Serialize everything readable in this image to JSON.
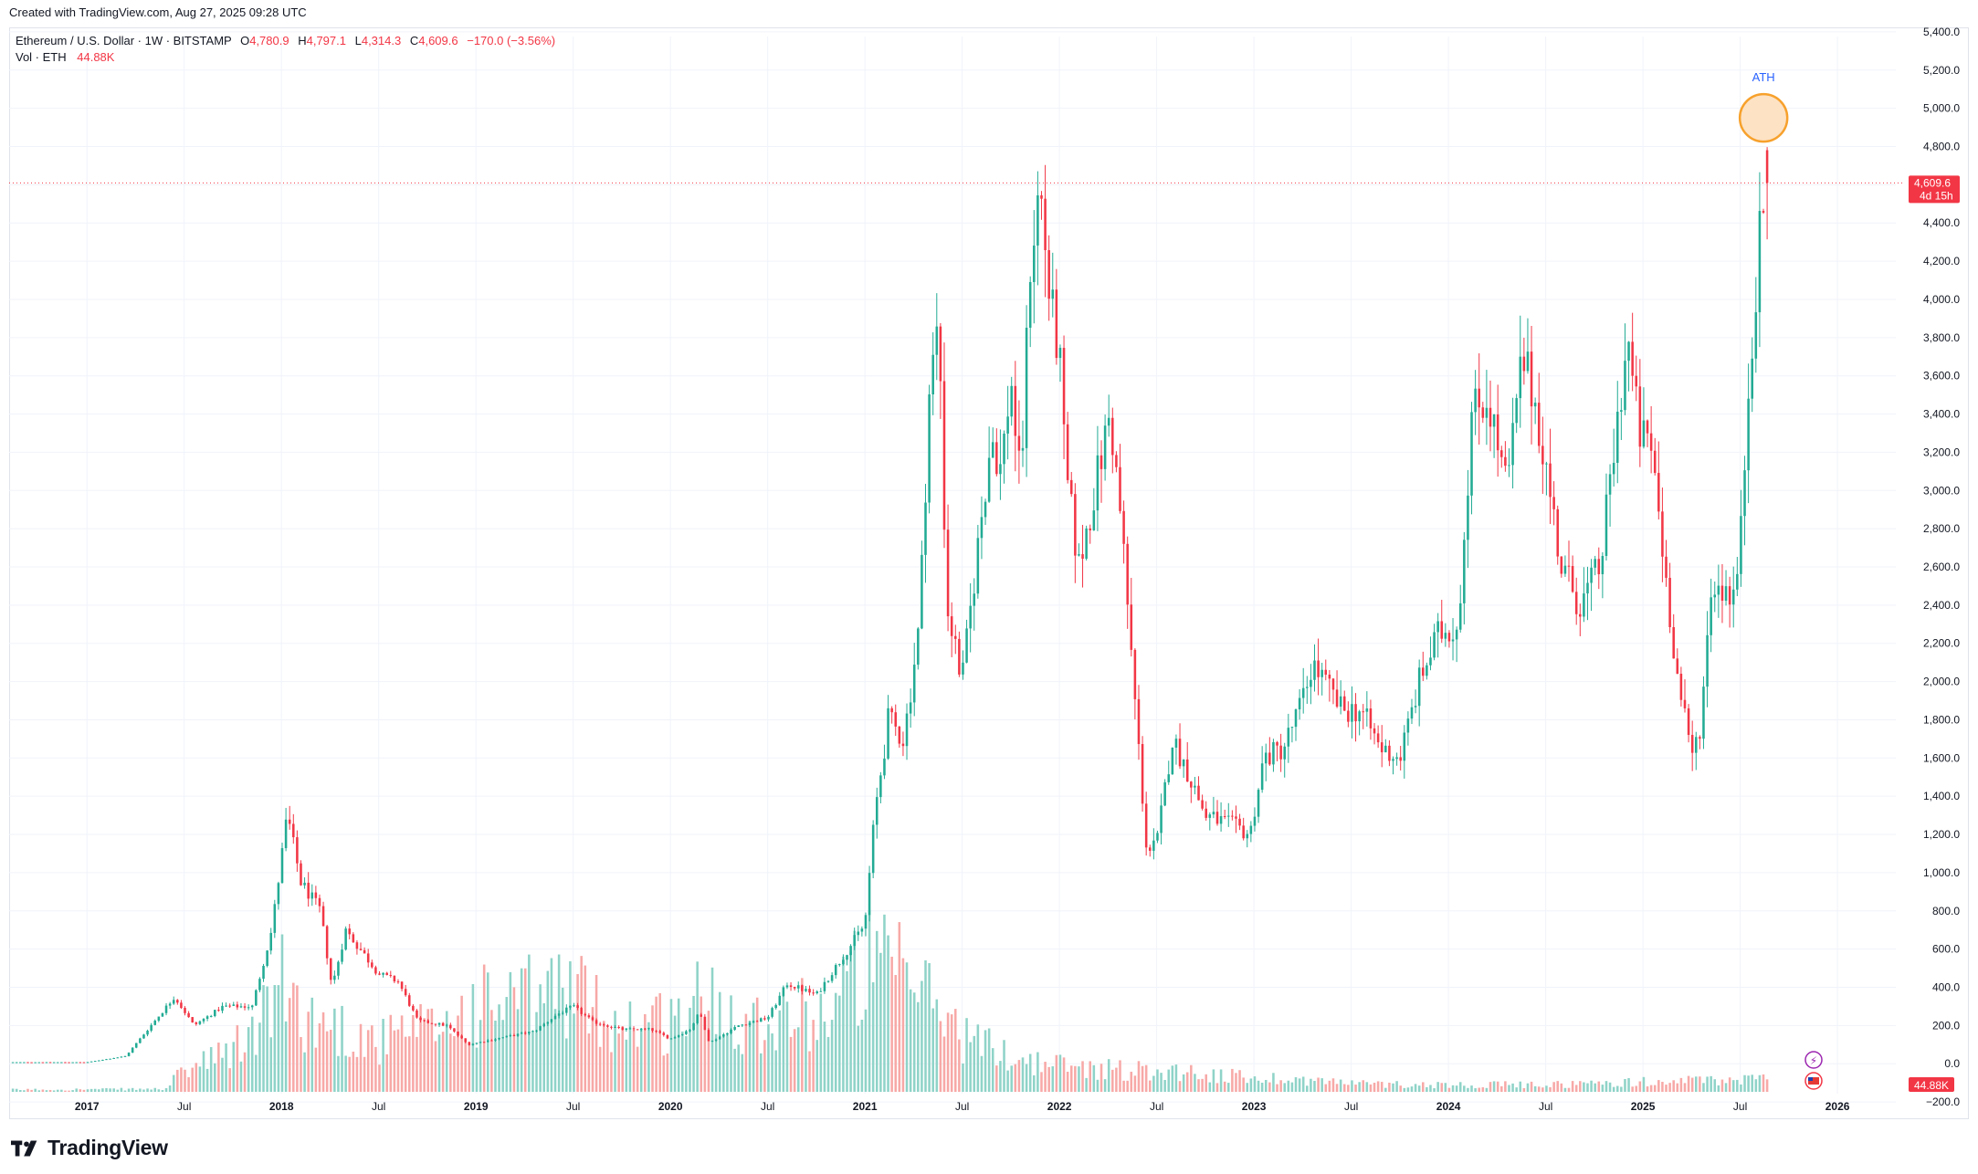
{
  "header": {
    "created_with": "Created with TradingView.com, Aug 27, 2025 09:28 UTC"
  },
  "legend": {
    "symbol": "Ethereum / U.S. Dollar · 1W · BITSTAMP",
    "open_key": "O",
    "open": "4,780.9",
    "high_key": "H",
    "high": "4,797.1",
    "low_key": "L",
    "low": "4,314.3",
    "close_key": "C",
    "close": "4,609.6",
    "change": "−170.0 (−3.56%)",
    "vol_label": "Vol · ETH",
    "vol_value": "44.88K"
  },
  "price_tag": {
    "price": "4,609.6",
    "countdown": "4d 15h"
  },
  "volume_tag": "44.88K",
  "annotation": {
    "text": "ATH",
    "price": 4950
  },
  "brand": {
    "name": "TradingView"
  },
  "colors": {
    "up": "#22ab94",
    "down": "#f23645",
    "up_vol": "#8fd3c8",
    "down_vol": "#f7a9a7",
    "ath_fill": "#fde2c4",
    "ath_stroke": "#f7a12c",
    "ath_text": "#2962ff"
  },
  "chart_data": {
    "type": "candlestick",
    "timeframe": "1W",
    "x_ticks": [
      {
        "label": "2017",
        "t": 2017.0,
        "bold": true
      },
      {
        "label": "Jul",
        "t": 2017.5,
        "bold": false
      },
      {
        "label": "2018",
        "t": 2018.0,
        "bold": true
      },
      {
        "label": "Jul",
        "t": 2018.5,
        "bold": false
      },
      {
        "label": "2019",
        "t": 2019.0,
        "bold": true
      },
      {
        "label": "Jul",
        "t": 2019.5,
        "bold": false
      },
      {
        "label": "2020",
        "t": 2020.0,
        "bold": true
      },
      {
        "label": "Jul",
        "t": 2020.5,
        "bold": false
      },
      {
        "label": "2021",
        "t": 2021.0,
        "bold": true
      },
      {
        "label": "Jul",
        "t": 2021.5,
        "bold": false
      },
      {
        "label": "2022",
        "t": 2022.0,
        "bold": true
      },
      {
        "label": "Jul",
        "t": 2022.5,
        "bold": false
      },
      {
        "label": "2023",
        "t": 2023.0,
        "bold": true
      },
      {
        "label": "Jul",
        "t": 2023.5,
        "bold": false
      },
      {
        "label": "2024",
        "t": 2024.0,
        "bold": true
      },
      {
        "label": "Jul",
        "t": 2024.5,
        "bold": false
      },
      {
        "label": "2025",
        "t": 2025.0,
        "bold": true
      },
      {
        "label": "Jul",
        "t": 2025.5,
        "bold": false
      },
      {
        "label": "2026",
        "t": 2026.0,
        "bold": true
      }
    ],
    "y_ticks": [
      "5,400.0",
      "5,200.0",
      "5,000.0",
      "4,800.0",
      "4,600.0",
      "4,400.0",
      "4,200.0",
      "4,000.0",
      "3,800.0",
      "3,600.0",
      "3,400.0",
      "3,200.0",
      "3,000.0",
      "2,800.0",
      "2,600.0",
      "2,400.0",
      "2,200.0",
      "2,000.0",
      "1,800.0",
      "1,600.0",
      "1,400.0",
      "1,200.0",
      "1,000.0",
      "800.0",
      "600.0",
      "400.0",
      "200.0",
      "0.0",
      "−200.0"
    ],
    "y_tick_values": [
      5400,
      5200,
      5000,
      4800,
      4600,
      4400,
      4200,
      4000,
      3800,
      3600,
      3400,
      3200,
      3000,
      2800,
      2600,
      2400,
      2200,
      2000,
      1800,
      1600,
      1400,
      1200,
      1000,
      800,
      600,
      400,
      200,
      0,
      -200
    ],
    "ylim": [
      -300,
      5500
    ],
    "xlim": [
      2016.6,
      2026.3
    ],
    "last_price": 4609.6,
    "close_anchors": [
      [
        2016.6,
        8
      ],
      [
        2017.0,
        8
      ],
      [
        2017.2,
        40
      ],
      [
        2017.45,
        350
      ],
      [
        2017.55,
        200
      ],
      [
        2017.7,
        300
      ],
      [
        2017.85,
        300
      ],
      [
        2017.95,
        700
      ],
      [
        2018.03,
        1300
      ],
      [
        2018.1,
        950
      ],
      [
        2018.2,
        800
      ],
      [
        2018.26,
        400
      ],
      [
        2018.33,
        700
      ],
      [
        2018.5,
        470
      ],
      [
        2018.6,
        430
      ],
      [
        2018.7,
        225
      ],
      [
        2018.85,
        200
      ],
      [
        2018.96,
        100
      ],
      [
        2019.1,
        130
      ],
      [
        2019.3,
        170
      ],
      [
        2019.42,
        260
      ],
      [
        2019.5,
        300
      ],
      [
        2019.6,
        220
      ],
      [
        2019.75,
        180
      ],
      [
        2019.9,
        180
      ],
      [
        2020.0,
        130
      ],
      [
        2020.1,
        180
      ],
      [
        2020.15,
        270
      ],
      [
        2020.2,
        110
      ],
      [
        2020.35,
        200
      ],
      [
        2020.5,
        240
      ],
      [
        2020.6,
        420
      ],
      [
        2020.75,
        360
      ],
      [
        2020.9,
        580
      ],
      [
        2021.0,
        730
      ],
      [
        2021.05,
        1300
      ],
      [
        2021.12,
        1800
      ],
      [
        2021.2,
        1700
      ],
      [
        2021.28,
        2300
      ],
      [
        2021.33,
        3500
      ],
      [
        2021.38,
        3900
      ],
      [
        2021.42,
        2400
      ],
      [
        2021.5,
        2000
      ],
      [
        2021.58,
        2700
      ],
      [
        2021.65,
        3300
      ],
      [
        2021.7,
        3100
      ],
      [
        2021.75,
        3600
      ],
      [
        2021.8,
        3000
      ],
      [
        2021.85,
        4200
      ],
      [
        2021.9,
        4600
      ],
      [
        2021.95,
        4000
      ],
      [
        2022.0,
        3700
      ],
      [
        2022.03,
        3100
      ],
      [
        2022.1,
        2600
      ],
      [
        2022.18,
        3000
      ],
      [
        2022.26,
        3400
      ],
      [
        2022.32,
        2800
      ],
      [
        2022.38,
        2000
      ],
      [
        2022.45,
        1100
      ],
      [
        2022.5,
        1150
      ],
      [
        2022.58,
        1700
      ],
      [
        2022.65,
        1550
      ],
      [
        2022.75,
        1300
      ],
      [
        2022.88,
        1250
      ],
      [
        2022.98,
        1200
      ],
      [
        2023.05,
        1600
      ],
      [
        2023.15,
        1650
      ],
      [
        2023.25,
        1900
      ],
      [
        2023.3,
        2100
      ],
      [
        2023.45,
        1850
      ],
      [
        2023.55,
        1850
      ],
      [
        2023.65,
        1650
      ],
      [
        2023.75,
        1600
      ],
      [
        2023.85,
        2000
      ],
      [
        2023.95,
        2250
      ],
      [
        2024.05,
        2300
      ],
      [
        2024.12,
        3400
      ],
      [
        2024.2,
        3500
      ],
      [
        2024.3,
        3000
      ],
      [
        2024.38,
        3700
      ],
      [
        2024.45,
        3450
      ],
      [
        2024.52,
        3000
      ],
      [
        2024.58,
        2600
      ],
      [
        2024.68,
        2400
      ],
      [
        2024.78,
        2600
      ],
      [
        2024.85,
        3200
      ],
      [
        2024.92,
        3800
      ],
      [
        2024.98,
        3300
      ],
      [
        2025.05,
        3200
      ],
      [
        2025.1,
        2700
      ],
      [
        2025.18,
        2000
      ],
      [
        2025.25,
        1600
      ],
      [
        2025.3,
        1800
      ],
      [
        2025.35,
        2500
      ],
      [
        2025.42,
        2500
      ],
      [
        2025.47,
        2450
      ],
      [
        2025.5,
        2700
      ],
      [
        2025.55,
        3700
      ],
      [
        2025.6,
        4300
      ],
      [
        2025.64,
        4609.6
      ]
    ],
    "volume_anchors": [
      [
        2016.6,
        3
      ],
      [
        2017.4,
        4
      ],
      [
        2017.5,
        30
      ],
      [
        2017.7,
        50
      ],
      [
        2017.85,
        80
      ],
      [
        2018.0,
        150
      ],
      [
        2018.15,
        100
      ],
      [
        2018.3,
        90
      ],
      [
        2018.5,
        70
      ],
      [
        2018.8,
        90
      ],
      [
        2019.0,
        120
      ],
      [
        2019.3,
        130
      ],
      [
        2019.45,
        150
      ],
      [
        2019.7,
        100
      ],
      [
        2020.0,
        100
      ],
      [
        2020.2,
        140
      ],
      [
        2020.4,
        100
      ],
      [
        2020.6,
        110
      ],
      [
        2020.8,
        110
      ],
      [
        2021.0,
        180
      ],
      [
        2021.2,
        160
      ],
      [
        2021.35,
        130
      ],
      [
        2021.5,
        80
      ],
      [
        2021.7,
        55
      ],
      [
        2021.9,
        40
      ],
      [
        2022.1,
        35
      ],
      [
        2022.4,
        30
      ],
      [
        2022.6,
        30
      ],
      [
        2022.85,
        22
      ],
      [
        2023.2,
        18
      ],
      [
        2023.6,
        11
      ],
      [
        2024.0,
        10
      ],
      [
        2024.5,
        10
      ],
      [
        2025.0,
        14
      ],
      [
        2025.3,
        16
      ],
      [
        2025.64,
        18
      ]
    ],
    "volume_max": 270
  }
}
